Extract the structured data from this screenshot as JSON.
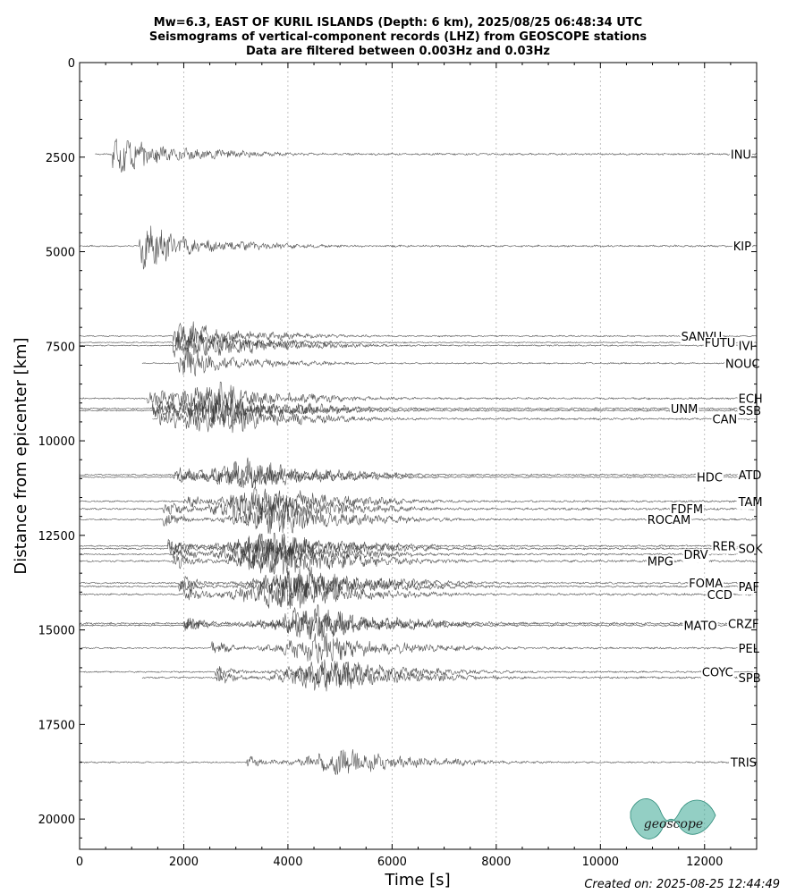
{
  "chart_data": {
    "type": "line",
    "title_lines": [
      "Mw=6.3, EAST OF KURIL ISLANDS (Depth: 6 km), 2025/08/25 06:48:34 UTC",
      "Seismograms of vertical-component records (LHZ) from GEOSCOPE stations",
      "Data are filtered between 0.003Hz and 0.03Hz"
    ],
    "xlabel": "Time [s]",
    "ylabel": "Distance from epicenter [km]",
    "xlim": [
      0,
      13000
    ],
    "ylim": [
      20800,
      0
    ],
    "y_inverted": true,
    "x_ticks": [
      0,
      2000,
      4000,
      6000,
      8000,
      10000,
      12000
    ],
    "x_tick_labels": [
      "0",
      "2000",
      "4000",
      "6000",
      "8000",
      "10000",
      "12000"
    ],
    "y_ticks": [
      0,
      2500,
      5000,
      7500,
      10000,
      12500,
      15000,
      17500,
      20000
    ],
    "y_tick_labels": [
      "0",
      "2500",
      "5000",
      "7500",
      "10000",
      "12500",
      "15000",
      "17500",
      "20000"
    ],
    "grid": "vertical dotted",
    "stations": [
      {
        "name": "INU",
        "distance": 2420,
        "start": 300,
        "p_arrival": 620,
        "burst_center": 700,
        "burst_amp": 0.8,
        "label_time": 12500
      },
      {
        "name": "KIP",
        "distance": 4850,
        "start": 0,
        "p_arrival": 1150,
        "burst_center": 1250,
        "burst_amp": 0.8,
        "label_time": 12550
      },
      {
        "name": "SANVU",
        "distance": 7230,
        "start": 0,
        "p_arrival": 1800,
        "burst_center": 2000,
        "burst_amp": 0.6,
        "label_time": 11550
      },
      {
        "name": "FUTU",
        "distance": 7400,
        "start": 0,
        "p_arrival": 1800,
        "burst_center": 1900,
        "burst_amp": 0.5,
        "label_time": 12000
      },
      {
        "name": "IVI",
        "distance": 7480,
        "start": 0,
        "p_arrival": 1850,
        "burst_center": 2700,
        "burst_amp": 0.6,
        "label_time": 12650
      },
      {
        "name": "NOUC",
        "distance": 7950,
        "start": 1200,
        "p_arrival": 1900,
        "burst_center": 2000,
        "burst_amp": 0.6,
        "label_time": 12400
      },
      {
        "name": "ECH",
        "distance": 8880,
        "start": 0,
        "p_arrival": 1300,
        "burst_center": 2500,
        "burst_amp": 0.8,
        "label_time": 12650
      },
      {
        "name": "UNM",
        "distance": 9150,
        "start": 0,
        "p_arrival": 1400,
        "burst_center": 2600,
        "burst_amp": 0.8,
        "label_time": 11350
      },
      {
        "name": "SSB",
        "distance": 9200,
        "start": 0,
        "p_arrival": 1400,
        "burst_center": 2700,
        "burst_amp": 0.7,
        "label_time": 12650
      },
      {
        "name": "CAN",
        "distance": 9420,
        "start": 1400,
        "p_arrival": 1500,
        "burst_center": 2600,
        "burst_amp": 0.8,
        "label_time": 12150
      },
      {
        "name": "ATD",
        "distance": 10900,
        "start": 0,
        "p_arrival": 1900,
        "burst_center": 3200,
        "burst_amp": 0.8,
        "label_time": 12650
      },
      {
        "name": "HDC",
        "distance": 10960,
        "start": 0,
        "p_arrival": 1800,
        "burst_center": 3300,
        "burst_amp": 0.6,
        "label_time": 11850
      },
      {
        "name": "TAM",
        "distance": 11600,
        "start": 0,
        "p_arrival": 2000,
        "burst_center": 3600,
        "burst_amp": 0.8,
        "label_time": 12650
      },
      {
        "name": "FDFM",
        "distance": 11800,
        "start": 0,
        "p_arrival": 1600,
        "burst_center": 3400,
        "burst_amp": 0.9,
        "label_time": 11350
      },
      {
        "name": "ROCAM",
        "distance": 12080,
        "start": 0,
        "p_arrival": 1600,
        "burst_center": 3800,
        "burst_amp": 0.8,
        "label_time": 10900
      },
      {
        "name": "RER",
        "distance": 12780,
        "start": 0,
        "p_arrival": 1700,
        "burst_center": 3600,
        "burst_amp": 0.7,
        "label_time": 12150
      },
      {
        "name": "SOK",
        "distance": 12850,
        "start": 0,
        "p_arrival": 1700,
        "burst_center": 3700,
        "burst_amp": 0.8,
        "label_time": 12650
      },
      {
        "name": "DRV",
        "distance": 13000,
        "start": 0,
        "p_arrival": 1800,
        "burst_center": 3500,
        "burst_amp": 0.8,
        "label_time": 11600
      },
      {
        "name": "MPG",
        "distance": 13180,
        "start": 0,
        "p_arrival": 1800,
        "burst_center": 3800,
        "burst_amp": 0.9,
        "label_time": 10900
      },
      {
        "name": "FOMA",
        "distance": 13760,
        "start": 0,
        "p_arrival": 1900,
        "burst_center": 4200,
        "burst_amp": 0.8,
        "label_time": 11700
      },
      {
        "name": "PAF",
        "distance": 13850,
        "start": 0,
        "p_arrival": 1900,
        "burst_center": 4300,
        "burst_amp": 0.8,
        "label_time": 12650
      },
      {
        "name": "CCD",
        "distance": 14060,
        "start": 0,
        "p_arrival": 2000,
        "burst_center": 3800,
        "burst_amp": 0.9,
        "label_time": 12050
      },
      {
        "name": "CRZF",
        "distance": 14830,
        "start": 0,
        "p_arrival": 2000,
        "burst_center": 4400,
        "burst_amp": 0.9,
        "label_time": 12450
      },
      {
        "name": "MATO",
        "distance": 14880,
        "start": 0,
        "p_arrival": 2000,
        "burst_center": 4500,
        "burst_amp": 0.7,
        "label_time": 11600
      },
      {
        "name": "PEL",
        "distance": 15480,
        "start": 0,
        "p_arrival": 2500,
        "burst_center": 4600,
        "burst_amp": 0.8,
        "label_time": 12650
      },
      {
        "name": "COYC",
        "distance": 16110,
        "start": 0,
        "p_arrival": 2600,
        "burst_center": 4800,
        "burst_amp": 0.7,
        "label_time": 11950
      },
      {
        "name": "SPB",
        "distance": 16260,
        "start": 1200,
        "p_arrival": 2600,
        "burst_center": 4700,
        "burst_amp": 0.8,
        "label_time": 12650
      },
      {
        "name": "TRIS",
        "distance": 18500,
        "start": 0,
        "p_arrival": 3200,
        "burst_center": 5100,
        "burst_amp": 0.7,
        "label_time": 12500
      }
    ]
  },
  "logo": {
    "text": "geoscope",
    "color": "#3aa894"
  },
  "footer": {
    "created": "Created on: 2025-08-25 12:44:49"
  }
}
